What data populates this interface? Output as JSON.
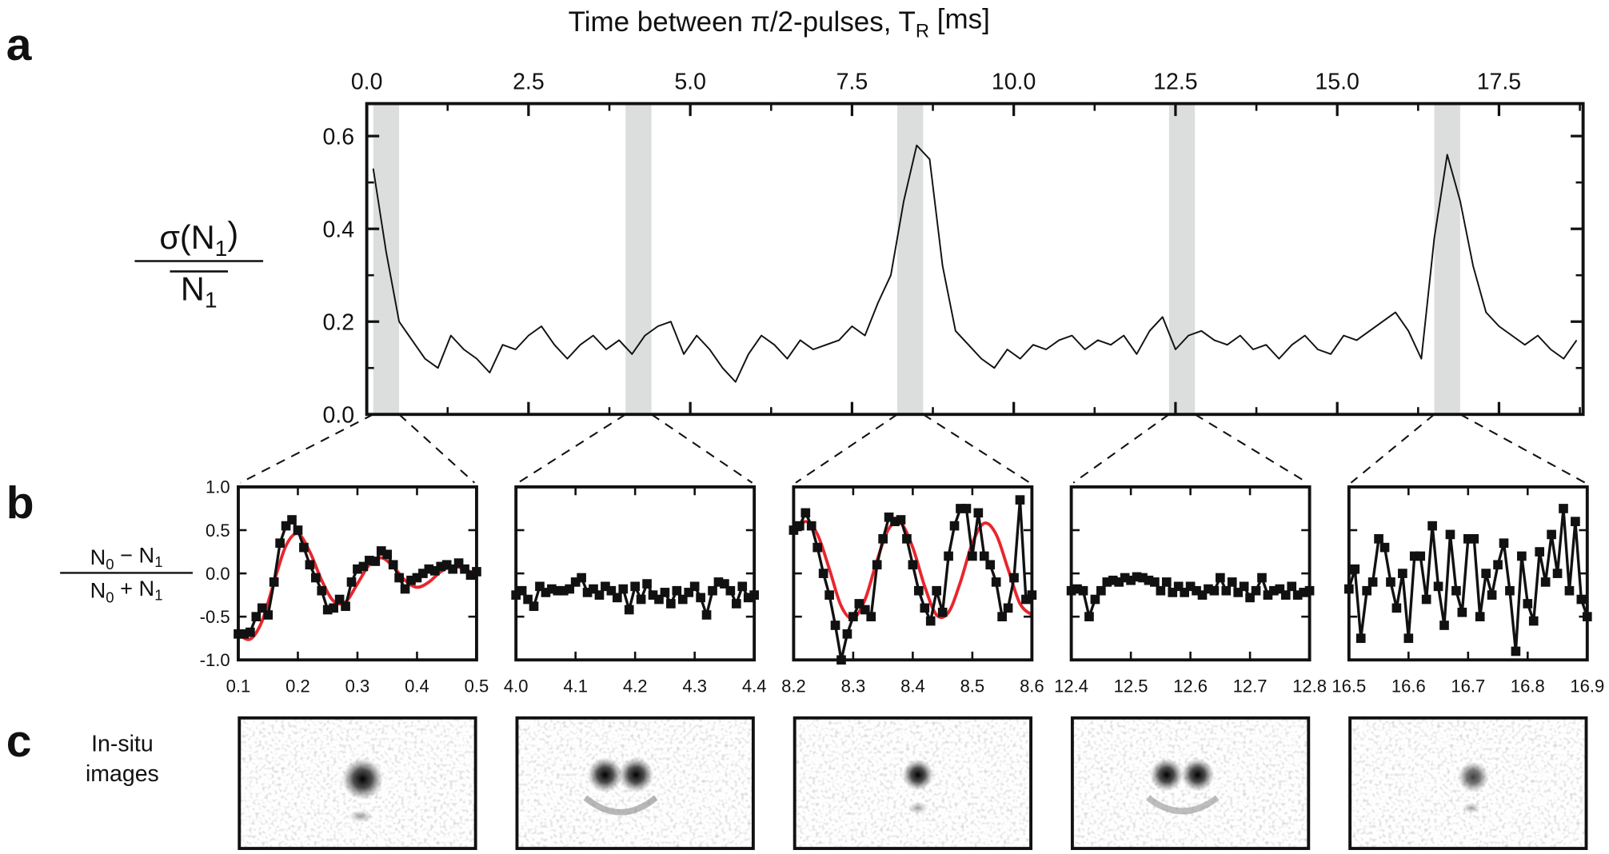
{
  "panel_labels": [
    "a",
    "b",
    "c"
  ],
  "image_caption": [
    "In-situ",
    "images"
  ],
  "chart_data": [
    {
      "type": "line",
      "xlabel": [
        "Time between π/2-pulses, T",
        "R",
        " [ms]"
      ],
      "ylabel": {
        "numerator": [
          "σ(N",
          "1",
          ")"
        ],
        "denominator": [
          "N",
          "1"
        ]
      },
      "xlim": [
        0,
        18.8
      ],
      "ylim": [
        0,
        0.67
      ],
      "xticks": [
        {
          "value": 0,
          "label": "0.0"
        },
        2.5,
        {
          "value": 5,
          "label": "5.0"
        },
        7.5,
        {
          "value": 10,
          "label": "10.0"
        },
        12.5,
        {
          "value": 15,
          "label": "15.0"
        },
        17.5
      ],
      "xminor": [
        1.25,
        3.75,
        6.25,
        8.75,
        11.25,
        13.75,
        16.25,
        18.75
      ],
      "yticks": [
        {
          "value": 0,
          "label": "0.0"
        },
        0.2,
        0.4,
        0.6
      ],
      "yminor": [
        0.1,
        0.3,
        0.5
      ],
      "highlights": [
        [
          0.1,
          0.5
        ],
        [
          4.0,
          4.4
        ],
        [
          8.2,
          8.6
        ],
        [
          12.4,
          12.8
        ],
        [
          16.5,
          16.9
        ]
      ],
      "highlight_color": "#dcdedd",
      "color": "#111111",
      "x": [
        0.1,
        0.3,
        0.5,
        0.7,
        0.9,
        1.1,
        1.3,
        1.5,
        1.7,
        1.9,
        2.1,
        2.3,
        2.5,
        2.7,
        2.9,
        3.1,
        3.3,
        3.5,
        3.7,
        3.9,
        4.1,
        4.3,
        4.5,
        4.7,
        4.9,
        5.1,
        5.3,
        5.5,
        5.7,
        5.9,
        6.1,
        6.3,
        6.5,
        6.7,
        6.9,
        7.1,
        7.3,
        7.5,
        7.7,
        7.9,
        8.1,
        8.3,
        8.5,
        8.7,
        8.9,
        9.1,
        9.3,
        9.5,
        9.7,
        9.9,
        10.1,
        10.3,
        10.5,
        10.7,
        10.9,
        11.1,
        11.3,
        11.5,
        11.7,
        11.9,
        12.1,
        12.3,
        12.5,
        12.7,
        12.9,
        13.1,
        13.3,
        13.5,
        13.7,
        13.9,
        14.1,
        14.3,
        14.5,
        14.7,
        14.9,
        15.1,
        15.3,
        15.5,
        15.7,
        15.9,
        16.1,
        16.3,
        16.5,
        16.7,
        16.9,
        17.1,
        17.3,
        17.5,
        17.7,
        17.9,
        18.1,
        18.3,
        18.5,
        18.7
      ],
      "values": [
        0.53,
        0.35,
        0.2,
        0.16,
        0.12,
        0.1,
        0.17,
        0.14,
        0.12,
        0.09,
        0.15,
        0.14,
        0.17,
        0.19,
        0.15,
        0.12,
        0.15,
        0.17,
        0.14,
        0.16,
        0.13,
        0.17,
        0.19,
        0.2,
        0.13,
        0.17,
        0.14,
        0.1,
        0.07,
        0.13,
        0.17,
        0.15,
        0.12,
        0.16,
        0.14,
        0.15,
        0.16,
        0.19,
        0.17,
        0.24,
        0.3,
        0.46,
        0.58,
        0.55,
        0.32,
        0.18,
        0.15,
        0.12,
        0.1,
        0.14,
        0.12,
        0.15,
        0.14,
        0.16,
        0.17,
        0.14,
        0.16,
        0.15,
        0.17,
        0.13,
        0.18,
        0.21,
        0.14,
        0.17,
        0.18,
        0.16,
        0.15,
        0.17,
        0.14,
        0.15,
        0.12,
        0.15,
        0.17,
        0.14,
        0.13,
        0.17,
        0.16,
        0.18,
        0.2,
        0.22,
        0.18,
        0.12,
        0.38,
        0.56,
        0.46,
        0.32,
        0.22,
        0.19,
        0.17,
        0.15,
        0.17,
        0.14,
        0.12,
        0.16
      ]
    },
    {
      "type": "line",
      "ylabel": {
        "numerator": [
          "N",
          "0",
          " − N",
          "1"
        ],
        "denominator": [
          "N",
          "0",
          " + N",
          "1"
        ]
      },
      "xlim": [
        0.1,
        0.5
      ],
      "ylim": [
        -1,
        1
      ],
      "xticks": [
        0.1,
        0.2,
        0.3,
        0.4,
        0.5
      ],
      "yticks": [
        {
          "value": 1,
          "label": "1.0"
        },
        0.5,
        {
          "value": 0,
          "label": "0.0"
        },
        -0.5,
        {
          "value": -1,
          "label": "-1.0"
        }
      ],
      "color": "#111111",
      "x": [
        0.1,
        0.11,
        0.12,
        0.13,
        0.14,
        0.15,
        0.16,
        0.17,
        0.18,
        0.19,
        0.2,
        0.21,
        0.22,
        0.23,
        0.24,
        0.25,
        0.26,
        0.27,
        0.28,
        0.29,
        0.3,
        0.31,
        0.32,
        0.33,
        0.34,
        0.35,
        0.36,
        0.37,
        0.38,
        0.39,
        0.4,
        0.41,
        0.42,
        0.43,
        0.44,
        0.45,
        0.46,
        0.47,
        0.48,
        0.49,
        0.5
      ],
      "values": [
        -0.7,
        -0.7,
        -0.68,
        -0.5,
        -0.4,
        -0.48,
        -0.1,
        0.35,
        0.55,
        0.62,
        0.5,
        0.3,
        0.1,
        -0.05,
        -0.2,
        -0.42,
        -0.4,
        -0.3,
        -0.38,
        -0.1,
        0.05,
        0.08,
        0.15,
        0.14,
        0.26,
        0.22,
        0.1,
        -0.05,
        -0.18,
        -0.08,
        -0.05,
        0.0,
        0.05,
        0.03,
        0.08,
        0.1,
        0.05,
        0.12,
        0.05,
        -0.02,
        0.02
      ],
      "fit": {
        "color": "#e8262e",
        "x": [
          0.1,
          0.12,
          0.14,
          0.16,
          0.18,
          0.2,
          0.22,
          0.24,
          0.26,
          0.28,
          0.3,
          0.32,
          0.34,
          0.36,
          0.38,
          0.4,
          0.42,
          0.44,
          0.46,
          0.48,
          0.5
        ],
        "values": [
          -0.7,
          -0.76,
          -0.55,
          -0.1,
          0.32,
          0.46,
          0.25,
          -0.08,
          -0.32,
          -0.33,
          -0.12,
          0.1,
          0.18,
          0.08,
          -0.08,
          -0.16,
          -0.1,
          0.02,
          0.08,
          0.05,
          -0.02
        ]
      }
    },
    {
      "type": "line",
      "xlim": [
        4.0,
        4.4
      ],
      "ylim": [
        -1,
        1
      ],
      "xticks": [
        {
          "value": 4,
          "label": "4.0"
        },
        4.1,
        4.2,
        4.3,
        4.4
      ],
      "color": "#111111",
      "x": [
        4.0,
        4.01,
        4.02,
        4.03,
        4.04,
        4.05,
        4.06,
        4.07,
        4.08,
        4.09,
        4.1,
        4.11,
        4.12,
        4.13,
        4.14,
        4.15,
        4.16,
        4.17,
        4.18,
        4.19,
        4.2,
        4.21,
        4.22,
        4.23,
        4.24,
        4.25,
        4.26,
        4.27,
        4.28,
        4.29,
        4.3,
        4.31,
        4.32,
        4.33,
        4.34,
        4.35,
        4.36,
        4.37,
        4.38,
        4.39,
        4.4
      ],
      "values": [
        -0.25,
        -0.2,
        -0.3,
        -0.38,
        -0.15,
        -0.22,
        -0.18,
        -0.2,
        -0.2,
        -0.18,
        -0.1,
        -0.05,
        -0.22,
        -0.18,
        -0.25,
        -0.15,
        -0.2,
        -0.28,
        -0.18,
        -0.42,
        -0.15,
        -0.3,
        -0.12,
        -0.25,
        -0.3,
        -0.22,
        -0.35,
        -0.2,
        -0.3,
        -0.22,
        -0.15,
        -0.28,
        -0.48,
        -0.2,
        -0.1,
        -0.12,
        -0.2,
        -0.35,
        -0.15,
        -0.28,
        -0.25
      ]
    },
    {
      "type": "line",
      "xlim": [
        8.2,
        8.6
      ],
      "ylim": [
        -1,
        1
      ],
      "xticks": [
        8.2,
        8.3,
        8.4,
        8.5,
        8.6
      ],
      "color": "#111111",
      "x": [
        8.2,
        8.21,
        8.22,
        8.23,
        8.24,
        8.25,
        8.26,
        8.27,
        8.28,
        8.29,
        8.3,
        8.31,
        8.32,
        8.33,
        8.34,
        8.35,
        8.36,
        8.37,
        8.38,
        8.39,
        8.4,
        8.41,
        8.42,
        8.43,
        8.44,
        8.45,
        8.46,
        8.47,
        8.48,
        8.49,
        8.5,
        8.51,
        8.52,
        8.53,
        8.54,
        8.55,
        8.56,
        8.57,
        8.58,
        8.59,
        8.6
      ],
      "values": [
        0.5,
        0.55,
        0.7,
        0.55,
        0.3,
        0.0,
        -0.25,
        -0.6,
        -1.0,
        -0.7,
        -0.5,
        -0.35,
        -0.42,
        -0.5,
        0.1,
        0.4,
        0.65,
        0.6,
        0.62,
        0.4,
        0.1,
        -0.2,
        -0.4,
        -0.55,
        -0.2,
        -0.45,
        0.2,
        0.55,
        0.75,
        0.75,
        0.2,
        0.7,
        0.2,
        0.1,
        -0.1,
        -0.5,
        -0.4,
        -0.05,
        0.85,
        -0.3,
        -0.25
      ],
      "fit": {
        "color": "#e8262e",
        "x": [
          8.2,
          8.22,
          8.24,
          8.26,
          8.28,
          8.3,
          8.32,
          8.34,
          8.36,
          8.38,
          8.4,
          8.42,
          8.44,
          8.46,
          8.48,
          8.5,
          8.52,
          8.54,
          8.56,
          8.58,
          8.6
        ],
        "values": [
          0.45,
          0.6,
          0.45,
          0.05,
          -0.38,
          -0.52,
          -0.3,
          0.15,
          0.52,
          0.58,
          0.3,
          -0.15,
          -0.48,
          -0.45,
          -0.1,
          0.35,
          0.58,
          0.45,
          0.05,
          -0.35,
          -0.48
        ]
      }
    },
    {
      "type": "line",
      "xlim": [
        12.4,
        12.8
      ],
      "ylim": [
        -1,
        1
      ],
      "xticks": [
        12.4,
        12.5,
        12.6,
        12.7,
        12.8
      ],
      "color": "#111111",
      "x": [
        12.4,
        12.41,
        12.42,
        12.43,
        12.44,
        12.45,
        12.46,
        12.47,
        12.48,
        12.49,
        12.5,
        12.51,
        12.52,
        12.53,
        12.54,
        12.55,
        12.56,
        12.57,
        12.58,
        12.59,
        12.6,
        12.61,
        12.62,
        12.63,
        12.64,
        12.65,
        12.66,
        12.67,
        12.68,
        12.69,
        12.7,
        12.71,
        12.72,
        12.73,
        12.74,
        12.75,
        12.76,
        12.77,
        12.78,
        12.79,
        12.8
      ],
      "values": [
        -0.2,
        -0.18,
        -0.2,
        -0.5,
        -0.3,
        -0.2,
        -0.1,
        -0.08,
        -0.1,
        -0.05,
        -0.08,
        -0.04,
        -0.05,
        -0.08,
        -0.1,
        -0.2,
        -0.1,
        -0.22,
        -0.15,
        -0.22,
        -0.15,
        -0.2,
        -0.25,
        -0.18,
        -0.2,
        -0.05,
        -0.2,
        -0.1,
        -0.22,
        -0.15,
        -0.28,
        -0.2,
        -0.05,
        -0.25,
        -0.2,
        -0.18,
        -0.25,
        -0.15,
        -0.25,
        -0.22,
        -0.2
      ]
    },
    {
      "type": "line",
      "xlim": [
        16.5,
        16.9
      ],
      "ylim": [
        -1,
        1
      ],
      "xticks": [
        16.5,
        16.6,
        16.7,
        16.8,
        16.9
      ],
      "color": "#111111",
      "x": [
        16.5,
        16.51,
        16.52,
        16.53,
        16.54,
        16.55,
        16.56,
        16.57,
        16.58,
        16.59,
        16.6,
        16.61,
        16.62,
        16.63,
        16.64,
        16.65,
        16.66,
        16.67,
        16.68,
        16.69,
        16.7,
        16.71,
        16.72,
        16.73,
        16.74,
        16.75,
        16.76,
        16.77,
        16.78,
        16.79,
        16.8,
        16.81,
        16.82,
        16.83,
        16.84,
        16.85,
        16.86,
        16.87,
        16.88,
        16.89,
        16.9
      ],
      "values": [
        -0.18,
        0.05,
        -0.75,
        -0.2,
        -0.1,
        0.4,
        0.3,
        -0.1,
        -0.4,
        0.0,
        -0.75,
        0.2,
        0.2,
        -0.3,
        0.55,
        -0.15,
        -0.6,
        0.45,
        -0.2,
        -0.45,
        0.4,
        0.4,
        -0.5,
        0.0,
        -0.25,
        0.1,
        0.35,
        -0.2,
        -0.9,
        0.2,
        -0.35,
        -0.55,
        0.25,
        -0.1,
        0.45,
        0.0,
        0.75,
        -0.2,
        0.6,
        -0.3,
        -0.5
      ]
    }
  ]
}
